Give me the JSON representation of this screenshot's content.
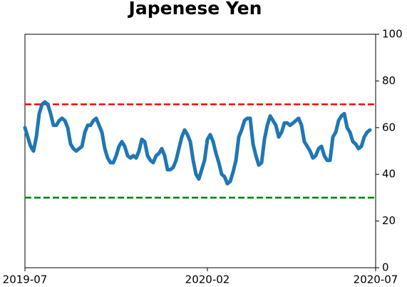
{
  "chart_data": {
    "type": "line",
    "title": "Japenese Yen",
    "categories": [
      "2019-07",
      null,
      null,
      null,
      null,
      null,
      null,
      null,
      null,
      null,
      null,
      null,
      null,
      null,
      null,
      null,
      null,
      null,
      null,
      null,
      null,
      null,
      null,
      null,
      null,
      null,
      null,
      null,
      null,
      null,
      null,
      null,
      null,
      null,
      null,
      null,
      null,
      null,
      null,
      null,
      null,
      null,
      null,
      null,
      null,
      null,
      null,
      null,
      null,
      null,
      null,
      null,
      null,
      null,
      null,
      null,
      null,
      null,
      null,
      null,
      null,
      null,
      null,
      null,
      "2020-02",
      null,
      null,
      null,
      null,
      null,
      null,
      null,
      null,
      null,
      null,
      null,
      null,
      null,
      null,
      null,
      null,
      null,
      null,
      null,
      null,
      null,
      null,
      null,
      null,
      null,
      null,
      null,
      null,
      null,
      null,
      null,
      null,
      null,
      null,
      null,
      null,
      null,
      null,
      null,
      null,
      null,
      null,
      null,
      null,
      null,
      null,
      null,
      null,
      null,
      null,
      null,
      null,
      null,
      null,
      null,
      null,
      null,
      null,
      "2020-07"
    ],
    "series": [
      {
        "color": "#1f77b4",
        "values": [
          60,
          56,
          52,
          50,
          56,
          66,
          70,
          71,
          70,
          66,
          61,
          61,
          63,
          64,
          63,
          60,
          53,
          51,
          50,
          51,
          52,
          58,
          61,
          61,
          63,
          64,
          61,
          58,
          51,
          47,
          45,
          45,
          48,
          52,
          54,
          52,
          48,
          47,
          48,
          47,
          50,
          55,
          54,
          48,
          46,
          45,
          48,
          49,
          51,
          48,
          42,
          42,
          43,
          46,
          51,
          56,
          59,
          57,
          54,
          46,
          40,
          38,
          42,
          46,
          55,
          57,
          54,
          49,
          45,
          40,
          39,
          36,
          37,
          41,
          46,
          56,
          59,
          63,
          64,
          64,
          53,
          48,
          44,
          45,
          55,
          61,
          65,
          63,
          61,
          56,
          58,
          62,
          62,
          61,
          62,
          63,
          64,
          61,
          54,
          52,
          50,
          47,
          48,
          51,
          52,
          48,
          46,
          46,
          56,
          58,
          63,
          65,
          66,
          60,
          58,
          54,
          53,
          51,
          52,
          56,
          58,
          59,
          null,
          null
        ]
      }
    ],
    "hlines": [
      {
        "value": 70,
        "color": "#ff0000"
      },
      {
        "value": 30,
        "color": "#008000"
      }
    ],
    "ylim": [
      0,
      100
    ],
    "yticks": [
      0,
      20,
      40,
      60,
      80,
      100
    ],
    "yaxis_side": "right"
  }
}
